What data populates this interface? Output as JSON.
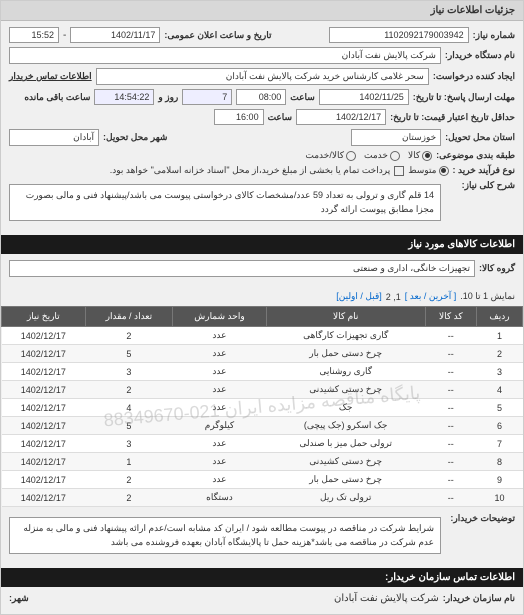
{
  "header": {
    "title": "جزئیات اطلاعات نیاز"
  },
  "form": {
    "request_no_label": "شماره نیاز:",
    "request_no": "1102092179003942",
    "datetime_label": "تاریخ و ساعت اعلان عمومی:",
    "date": "1402/11/17",
    "time": "15:52",
    "buyer_label": "نام دستگاه خریدار:",
    "buyer": "شرکت پالایش نفت آبادان",
    "requester_label": "ایجاد کننده درخواست:",
    "requester": "سحر غلامی کارشناس خرید  شرکت پالایش نفت آبادان",
    "contact_label": "اطلاعات تماس خریدار",
    "deadline_send_label": "مهلت ارسال پاسخ: تا تاریخ:",
    "deadline_date": "1402/11/25",
    "hour_label": "ساعت",
    "deadline_hour": "08:00",
    "remain_days": "7",
    "day_label": "روز و",
    "remain_time": "14:54:22",
    "remain_label": "ساعت باقی مانده",
    "validity_label": "حداقل تاریخ اعتبار قیمت: تا تاریخ:",
    "validity_date": "1402/12/17",
    "validity_hour": "16:00",
    "delivery_place_label": "استان محل تحویل:",
    "delivery_province": "خوزستان",
    "delivery_city_label": "شهر محل تحویل:",
    "delivery_city": "آبادان",
    "package_label": "طبقه بندی موضوعی:",
    "radio_all": "کالا",
    "radio_service": "خدمت",
    "radio_both": "کالا/خدمت",
    "buy_type_label": "نوع فرآیند خرید :",
    "radio_medium": "متوسط",
    "settlement_note": "پرداخت تمام یا بخشی از مبلغ خرید،از محل \"اسناد خزانه اسلامی\" خواهد بود.",
    "desc_label": "شرح کلی نیاز:",
    "desc": "14 قلم گاری و ترولی  به تعداد 59 عدد/مشخصات کالای درخواستی پیوست می باشد/پیشنهاد فنی و مالی بصورت مجزا مطابق پیوست ارائه گردد"
  },
  "items_header": "اطلاعات کالاهای مورد نیاز",
  "group_label": "گروه کالا:",
  "group": "تجهیزات خانگی، اداری و صنعتی",
  "pager": {
    "showing": "نمایش 1 تا 10.",
    "last": "[ آخرین / بعد ]",
    "pages": "1, 2",
    "first": "[قبل / اولین]"
  },
  "columns": [
    "ردیف",
    "کد کالا",
    "نام کالا",
    "واحد شمارش",
    "تعداد / مقدار",
    "تاریخ نیاز"
  ],
  "rows": [
    [
      "1",
      "--",
      "گاری تجهیزات کارگاهی",
      "عدد",
      "2",
      "1402/12/17"
    ],
    [
      "2",
      "--",
      "چرخ دستی حمل بار",
      "عدد",
      "5",
      "1402/12/17"
    ],
    [
      "3",
      "--",
      "گاری روشنایی",
      "عدد",
      "3",
      "1402/12/17"
    ],
    [
      "4",
      "--",
      "چرخ دستی کشیدنی",
      "عدد",
      "2",
      "1402/12/17"
    ],
    [
      "5",
      "--",
      "جک",
      "عدد",
      "4",
      "1402/12/17"
    ],
    [
      "6",
      "--",
      "جک اسکرو (جک پیچی)",
      "کیلوگرم",
      "5",
      "1402/12/17"
    ],
    [
      "7",
      "--",
      "ترولی حمل میز با صندلی",
      "عدد",
      "3",
      "1402/12/17"
    ],
    [
      "8",
      "--",
      "چرخ دستی کشیدنی",
      "عدد",
      "1",
      "1402/12/17"
    ],
    [
      "9",
      "--",
      "چرخ دستی حمل بار",
      "عدد",
      "2",
      "1402/12/17"
    ],
    [
      "10",
      "--",
      "ترولی تک ریل",
      "دستگاه",
      "2",
      "1402/12/17"
    ]
  ],
  "watermark": "پایگاه مناقصه مزایده ایران\n021-88349670",
  "notes_label": "توضیحات خریدار:",
  "notes": "شرایط شرکت در مناقصه در پیوست مطالعه شود / ایران کد مشابه است/عدم ارائه پیشنهاد فنی و مالی به منزله عدم شرکت در مناقصه می باشد*هزینه حمل تا پالایشگاه آبادان بعهده فروشنده می باشد",
  "footer_header": "اطلاعات تماس سازمان خریدار:",
  "org_label": "شهر:",
  "org_name_label": "نام سازمان خریدار:",
  "org_name": "شرکت پالایش نفت آبادان"
}
